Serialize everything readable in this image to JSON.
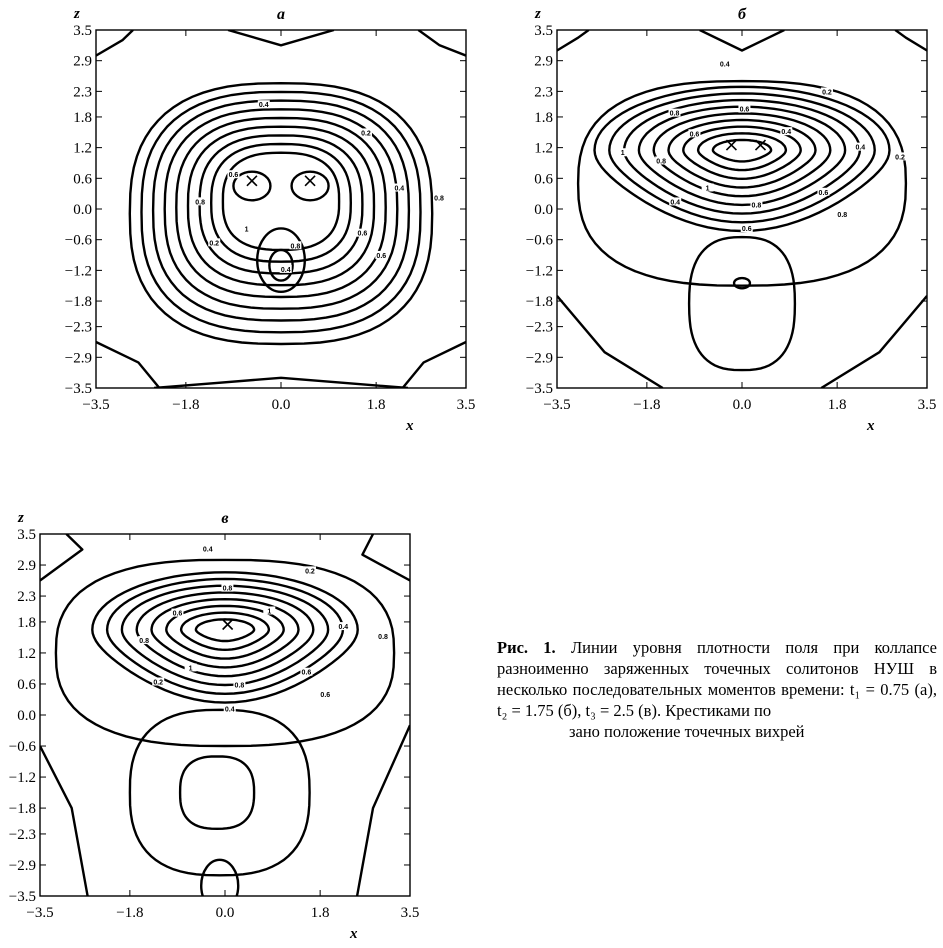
{
  "chart_data": [
    {
      "type": "contour",
      "panel_label": "а",
      "xlabel": "x",
      "ylabel": "z",
      "xlim": [
        -3.5,
        3.5
      ],
      "ylim": [
        -3.5,
        3.5
      ],
      "x_ticks": [
        "−3.5",
        "−1.8",
        "0.0",
        "1.8",
        "3.5"
      ],
      "y_ticks": [
        "3.5",
        "2.9",
        "2.3",
        "1.8",
        "1.2",
        "0.6",
        "0.0",
        "−0.6",
        "−1.2",
        "−1.8",
        "−2.3",
        "−2.9",
        "−3.5"
      ],
      "contour_labels": [
        "1",
        "0.8",
        "0.6",
        "0.4",
        "0.2",
        "0.4",
        "0.6",
        "0.8",
        "0.2",
        "0.4",
        "0.6",
        "0.8"
      ],
      "vortices": [
        {
          "x": -0.55,
          "z": 0.55
        },
        {
          "x": 0.55,
          "z": 0.55
        }
      ]
    },
    {
      "type": "contour",
      "panel_label": "б",
      "xlabel": "x",
      "ylabel": "z",
      "xlim": [
        -3.5,
        3.5
      ],
      "ylim": [
        -3.5,
        3.5
      ],
      "x_ticks": [
        "−3.5",
        "−1.8",
        "0.0",
        "1.8",
        "3.5"
      ],
      "y_ticks": [
        "3.5",
        "2.9",
        "2.3",
        "1.8",
        "1.2",
        "0.6",
        "0.0",
        "−0.6",
        "−1.2",
        "−1.8",
        "−2.3",
        "−2.9",
        "−3.5"
      ],
      "contour_labels": [
        "1",
        "0.8",
        "0.6",
        "0.4",
        "0.2",
        "0.4",
        "0.6",
        "0.8",
        "0.4",
        "0.6",
        "0.8",
        "0.2",
        "0.4",
        "0.6",
        "0.8",
        "1"
      ],
      "vortices": [
        {
          "x": -0.2,
          "z": 1.25
        },
        {
          "x": 0.35,
          "z": 1.25
        }
      ]
    },
    {
      "type": "contour",
      "panel_label": "в",
      "xlabel": "x",
      "ylabel": "z",
      "xlim": [
        -3.5,
        3.5
      ],
      "ylim": [
        -3.5,
        3.5
      ],
      "x_ticks": [
        "−3.5",
        "−1.8",
        "0.0",
        "1.8",
        "3.5"
      ],
      "y_ticks": [
        "3.5",
        "2.9",
        "2.3",
        "1.8",
        "1.2",
        "0.6",
        "0.0",
        "−0.6",
        "−1.2",
        "−1.8",
        "−2.3",
        "−2.9",
        "−3.5"
      ],
      "contour_labels": [
        "1",
        "0.8",
        "0.6",
        "0.4",
        "0.2",
        "0.4",
        "0.6",
        "0.8",
        "0.2",
        "0.4",
        "0.6",
        "0.8",
        "1",
        "0.8"
      ],
      "vortices": [
        {
          "x": 0.05,
          "z": 1.75
        }
      ]
    }
  ],
  "caption": {
    "lead": "Рис. 1.",
    "body": "Линии уровня плотности поля при коллапсе разноименно заряженных точечных солитонов НУШ в несколько последовательных моментов времени: t₁ = 0.75 (а), t₂ = 1.75 (б), t₃ = 2.5 (в). Крестиками по",
    "last": "зано положение точечных вихрей"
  }
}
